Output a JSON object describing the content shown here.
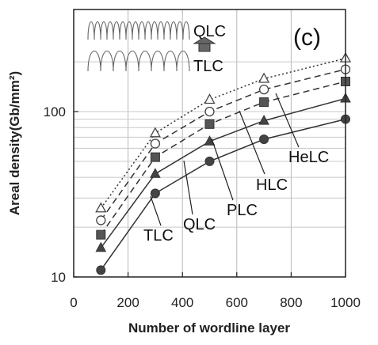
{
  "chart_data": {
    "type": "line",
    "panel_label": "(c)",
    "xlabel": "Number of wordline layer",
    "ylabel": "Areal density(Gb/mm²)",
    "xlim": [
      0,
      1000
    ],
    "ylim": [
      10,
      300
    ],
    "y_scale": "log",
    "x_ticks": [
      0,
      200,
      400,
      600,
      800,
      1000
    ],
    "y_ticks": [
      10,
      100
    ],
    "grid": true,
    "x": [
      100,
      300,
      500,
      700,
      1000
    ],
    "series": [
      {
        "name": "TLC",
        "values": [
          11,
          32,
          50,
          68,
          90
        ],
        "marker": "filled-circle",
        "line": "solid"
      },
      {
        "name": "QLC",
        "values": [
          15,
          42,
          66,
          88,
          120
        ],
        "marker": "filled-triangle",
        "line": "solid"
      },
      {
        "name": "PLC",
        "values": [
          18,
          53,
          84,
          114,
          152
        ],
        "marker": "filled-square",
        "line": "dashed"
      },
      {
        "name": "HLC",
        "values": [
          22,
          64,
          100,
          136,
          180
        ],
        "marker": "open-circle",
        "line": "dashed"
      },
      {
        "name": "HeLC",
        "values": [
          26,
          74,
          118,
          158,
          210
        ],
        "marker": "open-triangle",
        "line": "dotted"
      }
    ],
    "inset": {
      "top_label": "QLC",
      "bottom_label": "TLC"
    }
  }
}
